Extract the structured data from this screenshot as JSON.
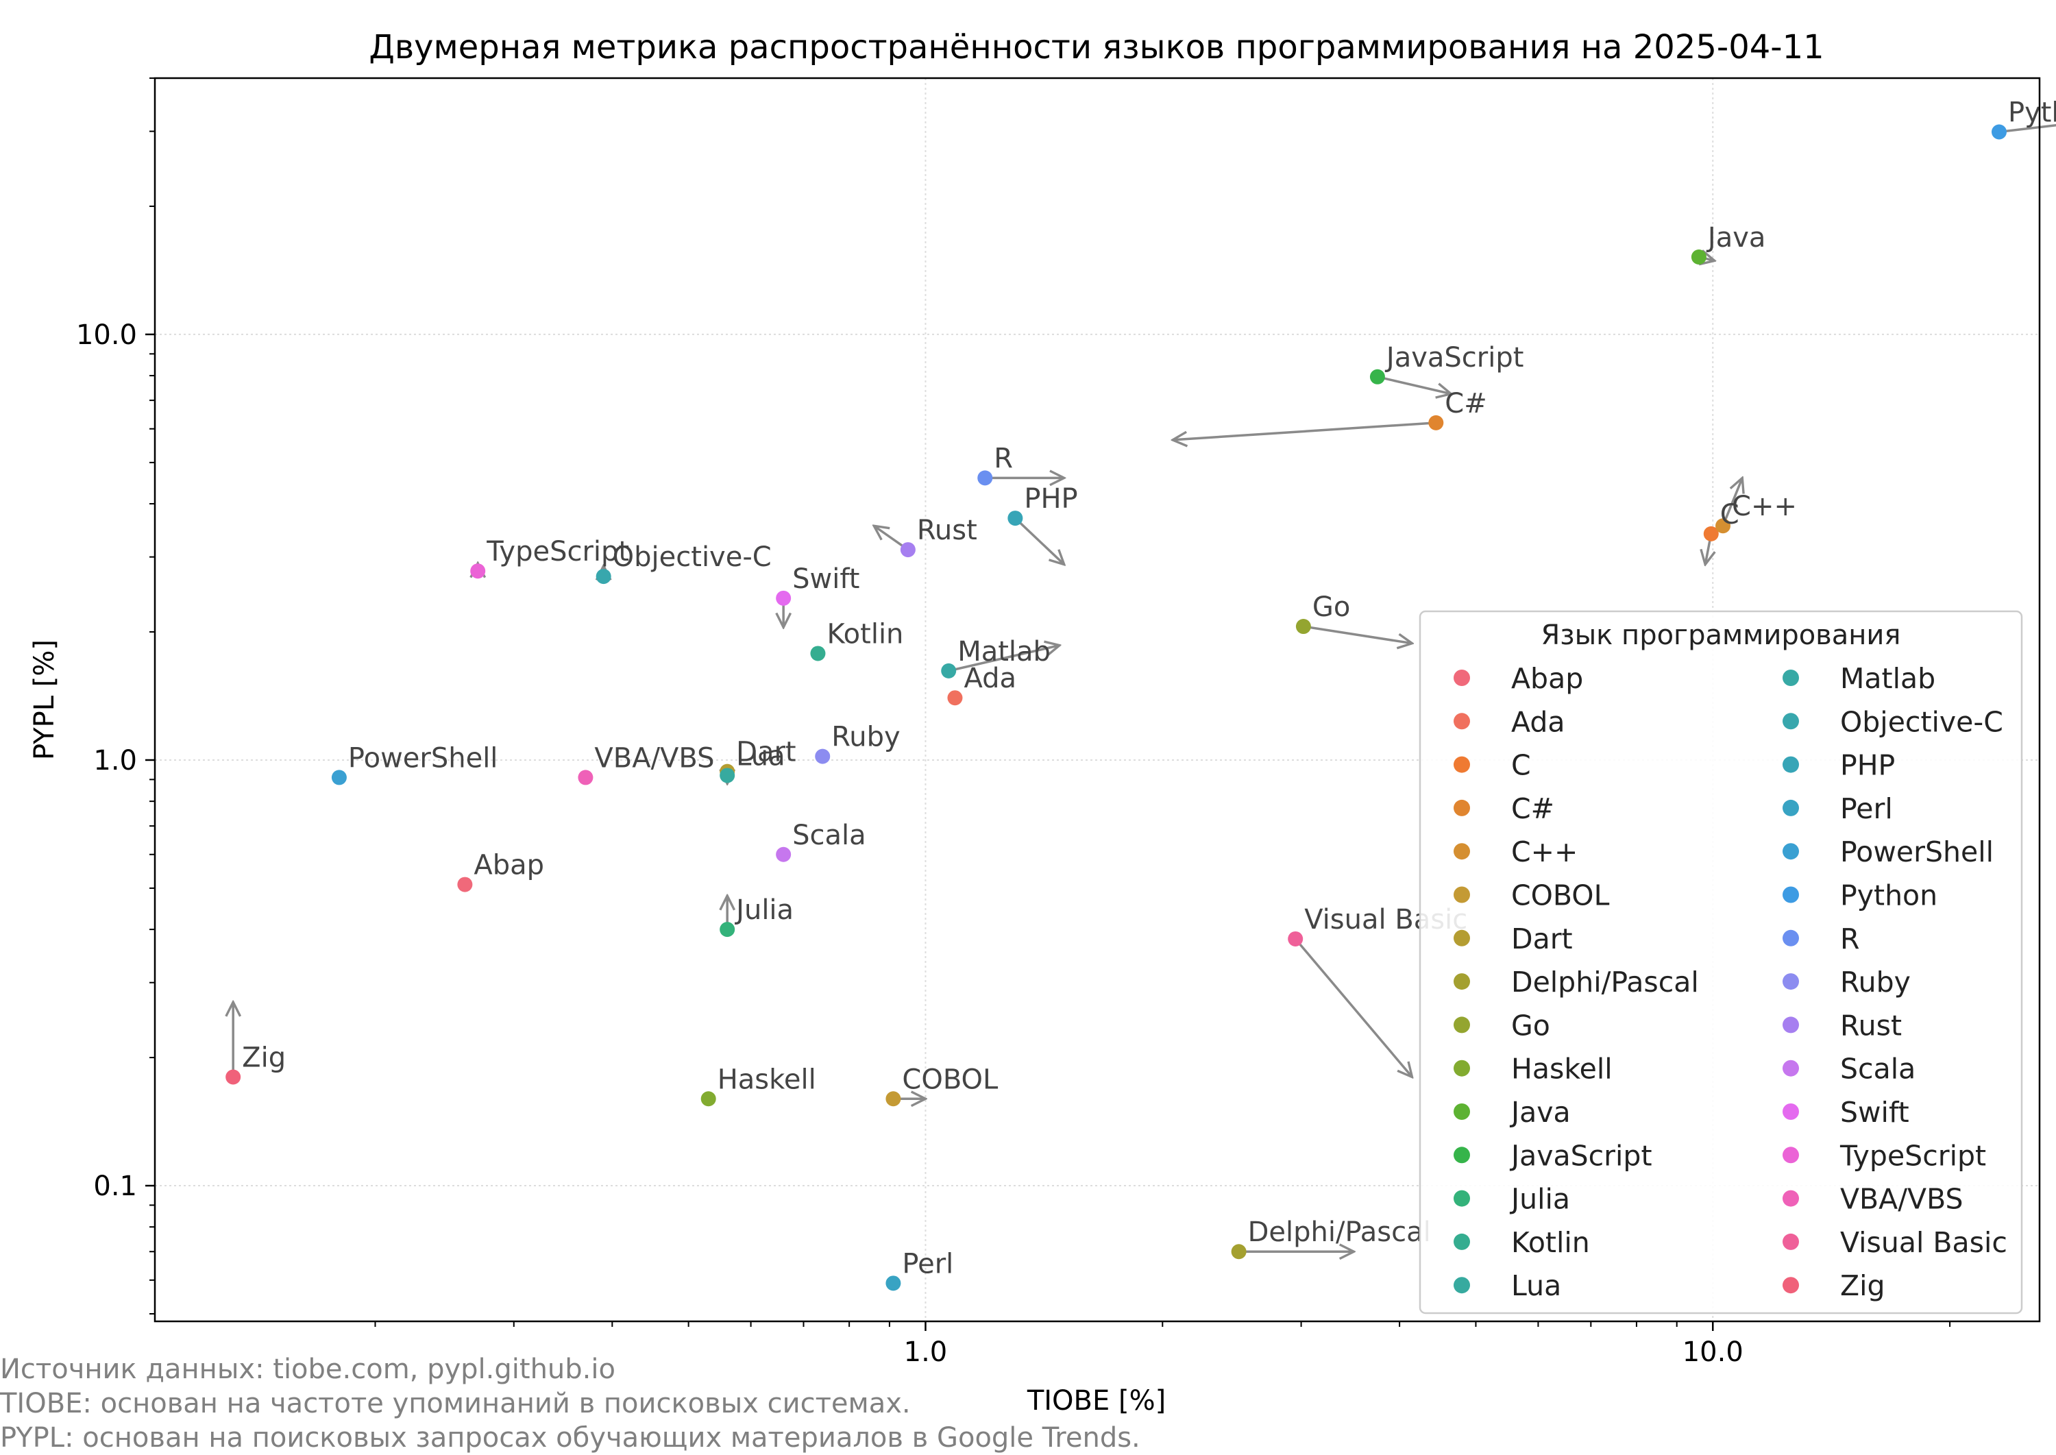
{
  "footnotes": [
    "Источник данных: tiobe.com, pypl.github.io",
    "TIOBE: основан на частоте упоминаний в поисковых системах.",
    "PYPL: основан на поисковых запросах обучающих материалов в Google Trends."
  ],
  "chart_data": {
    "type": "scatter",
    "title": "Двумерная метрика распространённости языков программирования на 2025-04-11",
    "xlabel": "TIOBE [%]",
    "ylabel": "PYPL [%]",
    "xscale": "log",
    "yscale": "log",
    "xlim": [
      0.105,
      26
    ],
    "ylim": [
      0.048,
      40
    ],
    "x_ticks": [
      {
        "value": 1.0,
        "label": "1.0"
      },
      {
        "value": 10.0,
        "label": "10.0"
      }
    ],
    "y_ticks": [
      {
        "value": 0.1,
        "label": "0.1"
      },
      {
        "value": 1.0,
        "label": "1.0"
      },
      {
        "value": 10.0,
        "label": "10.0"
      }
    ],
    "grid": true,
    "legend": {
      "title": "Язык программирования",
      "placement": "lower-right",
      "columns": 2
    },
    "points": [
      {
        "name": "Abap",
        "x": 0.26,
        "y": 0.51,
        "color": "#f0697a"
      },
      {
        "name": "Ada",
        "x": 1.09,
        "y": 1.4,
        "color": "#f0705e"
      },
      {
        "name": "C",
        "x": 9.95,
        "y": 3.4,
        "color": "#ef7a32",
        "arrow_to": [
          9.78,
          2.88
        ]
      },
      {
        "name": "C#",
        "x": 4.45,
        "y": 6.2,
        "color": "#e0852f",
        "arrow_to": [
          2.06,
          5.65
        ]
      },
      {
        "name": "C++",
        "x": 10.3,
        "y": 3.55,
        "color": "#d58f31",
        "arrow_to": [
          10.9,
          4.6
        ]
      },
      {
        "name": "COBOL",
        "x": 0.91,
        "y": 0.16,
        "color": "#c49a34",
        "arrow_to": [
          1.0,
          0.16
        ]
      },
      {
        "name": "Dart",
        "x": 0.56,
        "y": 0.94,
        "color": "#b49d32",
        "arrow_to": [
          0.56,
          0.88
        ]
      },
      {
        "name": "Delphi/Pascal",
        "x": 2.5,
        "y": 0.07,
        "color": "#a4a030",
        "arrow_to": [
          3.5,
          0.07
        ]
      },
      {
        "name": "Go",
        "x": 3.02,
        "y": 2.06,
        "color": "#94a530",
        "arrow_to": [
          4.15,
          1.88
        ]
      },
      {
        "name": "Haskell",
        "x": 0.53,
        "y": 0.16,
        "color": "#82ab30",
        "arrow_to": null
      },
      {
        "name": "Java",
        "x": 9.6,
        "y": 15.2,
        "color": "#5db232",
        "arrow_to": [
          10.05,
          14.9
        ]
      },
      {
        "name": "JavaScript",
        "x": 3.75,
        "y": 7.95,
        "color": "#36b44a",
        "arrow_to": [
          4.65,
          7.25
        ]
      },
      {
        "name": "Julia",
        "x": 0.56,
        "y": 0.4,
        "color": "#33b27a",
        "arrow_to": [
          0.56,
          0.48
        ]
      },
      {
        "name": "Kotlin",
        "x": 0.73,
        "y": 1.78,
        "color": "#35ad90",
        "arrow_to": null
      },
      {
        "name": "Lua",
        "x": 0.56,
        "y": 0.92,
        "color": "#37aa9f",
        "arrow_to": null
      },
      {
        "name": "Matlab",
        "x": 1.07,
        "y": 1.62,
        "color": "#37a9a5",
        "arrow_to": [
          1.48,
          1.86
        ]
      },
      {
        "name": "Objective-C",
        "x": 0.39,
        "y": 2.7,
        "color": "#38a7ad",
        "arrow_to": [
          0.39,
          2.86
        ]
      },
      {
        "name": "PHP",
        "x": 1.3,
        "y": 3.7,
        "color": "#37a5b7",
        "arrow_to": [
          1.5,
          2.88
        ]
      },
      {
        "name": "Perl",
        "x": 0.91,
        "y": 0.059,
        "color": "#38a3c3",
        "arrow_to": null
      },
      {
        "name": "PowerShell",
        "x": 0.18,
        "y": 0.91,
        "color": "#3aa0d2",
        "arrow_to": null
      },
      {
        "name": "Python",
        "x": 23.1,
        "y": 29.9,
        "color": "#3d9be3",
        "arrow_to": [
          29.4,
          31.5
        ]
      },
      {
        "name": "R",
        "x": 1.19,
        "y": 4.6,
        "color": "#6a8ff0",
        "arrow_to": [
          1.5,
          4.6
        ]
      },
      {
        "name": "Ruby",
        "x": 0.74,
        "y": 1.02,
        "color": "#8c8cf0",
        "arrow_to": null
      },
      {
        "name": "Rust",
        "x": 0.95,
        "y": 3.12,
        "color": "#a67ff0",
        "arrow_to": [
          0.86,
          3.55
        ]
      },
      {
        "name": "Scala",
        "x": 0.66,
        "y": 0.6,
        "color": "#c677ee",
        "arrow_to": null
      },
      {
        "name": "Swift",
        "x": 0.66,
        "y": 2.4,
        "color": "#e46aef",
        "arrow_to": [
          0.66,
          2.05
        ]
      },
      {
        "name": "TypeScript",
        "x": 0.27,
        "y": 2.78,
        "color": "#eb63d6",
        "arrow_to": [
          0.27,
          2.9
        ]
      },
      {
        "name": "VBA/VBS",
        "x": 0.37,
        "y": 0.91,
        "color": "#ef61b8",
        "arrow_to": null
      },
      {
        "name": "Visual Basic",
        "x": 2.95,
        "y": 0.38,
        "color": "#ef6099",
        "arrow_to": [
          4.15,
          0.18
        ]
      },
      {
        "name": "Zig",
        "x": 0.132,
        "y": 0.18,
        "color": "#f0617a",
        "arrow_to": [
          0.132,
          0.27
        ]
      }
    ]
  }
}
